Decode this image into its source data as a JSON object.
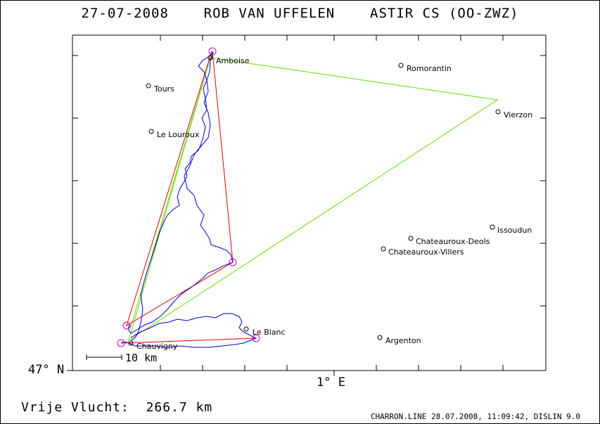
{
  "header": {
    "date": "27-07-2008",
    "pilot": "ROB VAN UFFELEN",
    "glider": "ASTIR CS (OO-ZWZ)"
  },
  "axes": {
    "lat_label": "47° N",
    "lon_label": "1° E"
  },
  "scale_bar": {
    "label": "10 km",
    "distance_km": 10
  },
  "summary": {
    "label": "Vrije Vlucht:",
    "distance": "266.7 km"
  },
  "footer": {
    "file": "CHARRON.LINE",
    "date": "28.07.2008",
    "time": "11:09:42",
    "software": "DISLIN 9.0"
  },
  "colors": {
    "track": "#0000cc",
    "free_flight_triangle": "#dd0000",
    "declared_task": "#66dd00",
    "turnpoint_marker": "#cc00cc",
    "frame": "#000000"
  },
  "places": [
    {
      "name": "Amboise"
    },
    {
      "name": "Romorantin"
    },
    {
      "name": "Tours"
    },
    {
      "name": "Vierzon"
    },
    {
      "name": "Le Louroux"
    },
    {
      "name": "Issoudun"
    },
    {
      "name": "Chateauroux-Deols"
    },
    {
      "name": "Chateauroux-Villers"
    },
    {
      "name": "Le Blanc"
    },
    {
      "name": "Argenton"
    },
    {
      "name": "Chauvigny"
    }
  ]
}
